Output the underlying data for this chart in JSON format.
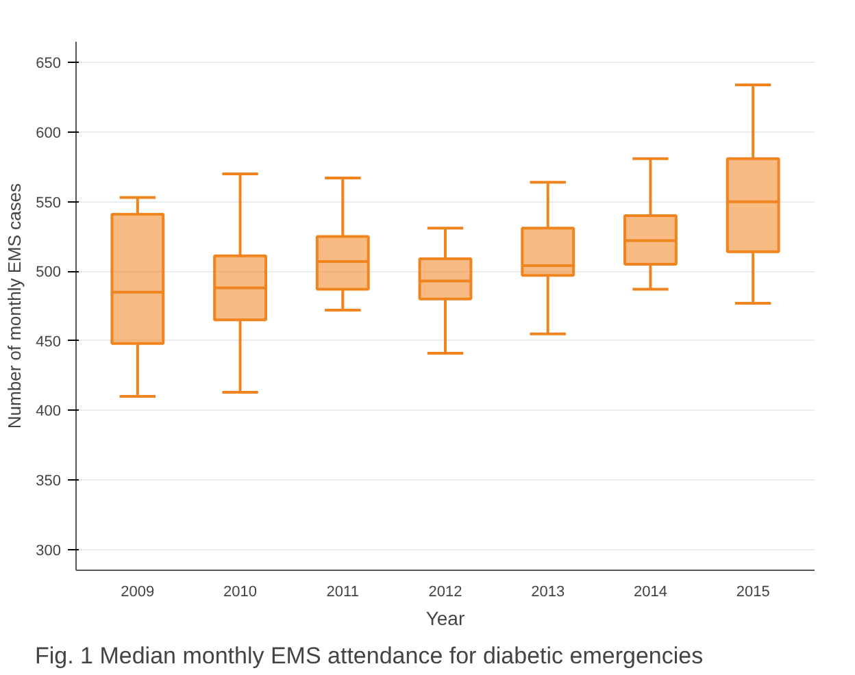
{
  "chart_data": {
    "type": "box",
    "xlabel": "Year",
    "ylabel": "Number of monthly EMS cases",
    "categories": [
      "2009",
      "2010",
      "2011",
      "2012",
      "2013",
      "2014",
      "2015"
    ],
    "boxes": [
      {
        "low": 410,
        "q1": 448,
        "median": 485,
        "q3": 541,
        "high": 553
      },
      {
        "low": 413,
        "q1": 465,
        "median": 488,
        "q3": 511,
        "high": 570
      },
      {
        "low": 472,
        "q1": 487,
        "median": 507,
        "q3": 525,
        "high": 567
      },
      {
        "low": 441,
        "q1": 480,
        "median": 493,
        "q3": 509,
        "high": 531
      },
      {
        "low": 455,
        "q1": 497,
        "median": 504,
        "q3": 531,
        "high": 564
      },
      {
        "low": 487,
        "q1": 505,
        "median": 522,
        "q3": 540,
        "high": 581
      },
      {
        "low": 477,
        "q1": 514,
        "median": 550,
        "q3": 581,
        "high": 634
      }
    ],
    "color": "#f0841e",
    "ylim": [
      285,
      665
    ],
    "yticks": [
      300,
      350,
      400,
      450,
      500,
      550,
      600,
      650
    ],
    "grid": "y",
    "annotations": [
      "Fig. 1 Median monthly EMS attendance for diabetic emergencies"
    ]
  }
}
